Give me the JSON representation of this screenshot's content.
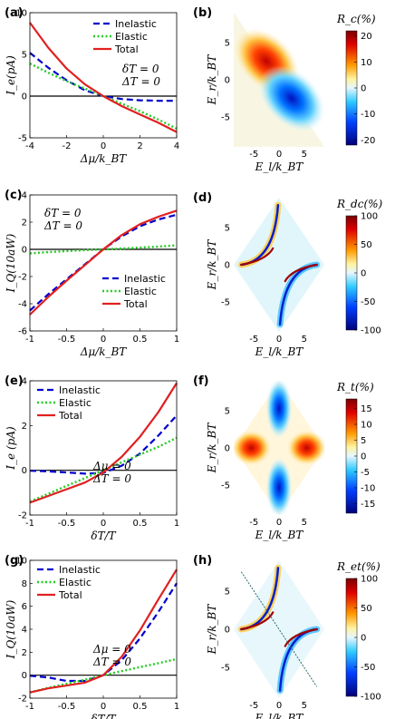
{
  "chart_data": [
    {
      "panel": "(a)",
      "type": "line",
      "xlabel": "Δμ/k_BT",
      "ylabel": "I_e(pA)",
      "xlim": [
        -4,
        4
      ],
      "ylim": [
        -5,
        10
      ],
      "xticks": [
        -4,
        -2,
        0,
        2,
        4
      ],
      "yticks": [
        -5,
        0,
        5,
        10
      ],
      "annotation": [
        "δT = 0",
        "ΔT = 0"
      ],
      "legend_position": "top-right",
      "x": [
        -4,
        -3,
        -2,
        -1,
        0,
        1,
        2,
        3,
        4
      ],
      "series": [
        {
          "name": "Inelastic",
          "values": [
            5.2,
            3.4,
            1.9,
            0.7,
            0,
            -0.35,
            -0.5,
            -0.55,
            -0.55
          ]
        },
        {
          "name": "Elastic",
          "values": [
            3.9,
            2.8,
            1.8,
            0.9,
            0,
            -0.9,
            -1.8,
            -2.8,
            -3.9
          ]
        },
        {
          "name": "Total",
          "values": [
            8.8,
            5.8,
            3.3,
            1.4,
            0,
            -1.2,
            -2.2,
            -3.2,
            -4.3
          ]
        }
      ]
    },
    {
      "panel": "(b)",
      "type": "heatmap",
      "xlabel": "E_l/k_BT",
      "ylabel": "E_r/k_BT",
      "cbar_title": "R_c(%)",
      "xticks": [
        -5,
        0,
        5
      ],
      "yticks": [
        -5,
        0,
        5
      ],
      "cbar_ticks": [
        20,
        10,
        0,
        -10,
        -20
      ],
      "cbar_range": [
        -22,
        22
      ]
    },
    {
      "panel": "(c)",
      "type": "line",
      "xlabel": "Δμ/k_BT",
      "ylabel": "I_Q(10aW)",
      "xlim": [
        -1,
        1
      ],
      "ylim": [
        -6,
        4
      ],
      "xticks": [
        -1,
        -0.5,
        0,
        0.5,
        1
      ],
      "yticks": [
        -6,
        -4,
        -2,
        0,
        2,
        4
      ],
      "annotation": [
        "δT = 0",
        "ΔT = 0"
      ],
      "legend_position": "bottom-right",
      "x": [
        -1,
        -0.75,
        -0.5,
        -0.25,
        0,
        0.25,
        0.5,
        0.75,
        1
      ],
      "series": [
        {
          "name": "Inelastic",
          "values": [
            -4.5,
            -3.3,
            -2.2,
            -1.1,
            0,
            0.95,
            1.7,
            2.2,
            2.55
          ]
        },
        {
          "name": "Elastic",
          "values": [
            -0.3,
            -0.2,
            -0.13,
            -0.06,
            0,
            0.06,
            0.13,
            0.2,
            0.3
          ]
        },
        {
          "name": "Total",
          "values": [
            -4.8,
            -3.5,
            -2.3,
            -1.15,
            0,
            1.05,
            1.85,
            2.4,
            2.85
          ]
        }
      ]
    },
    {
      "panel": "(d)",
      "type": "heatmap",
      "xlabel": "E_l/k_BT",
      "ylabel": "E_r/k_BT",
      "cbar_title": "R_dc(%)",
      "xticks": [
        -5,
        0,
        5
      ],
      "yticks": [
        -5,
        0,
        5
      ],
      "cbar_ticks": [
        100,
        50,
        0,
        -50,
        -100
      ],
      "cbar_range": [
        -100,
        100
      ]
    },
    {
      "panel": "(e)",
      "type": "line",
      "xlabel": "δT/T",
      "ylabel": "I_e (pA)",
      "xlim": [
        -1,
        1
      ],
      "ylim": [
        -2,
        4
      ],
      "xticks": [
        -1,
        -0.5,
        0,
        0.5,
        1
      ],
      "yticks": [
        -2,
        0,
        2,
        4
      ],
      "annotation": [
        "Δμ = 0",
        "ΔT = 0"
      ],
      "legend_position": "top-left",
      "x": [
        -1,
        -0.75,
        -0.5,
        -0.25,
        0,
        0.25,
        0.5,
        0.75,
        1
      ],
      "series": [
        {
          "name": "Inelastic",
          "values": [
            -0.02,
            -0.05,
            -0.1,
            -0.15,
            -0.12,
            0.2,
            0.75,
            1.55,
            2.45
          ]
        },
        {
          "name": "Elastic",
          "values": [
            -1.4,
            -1.05,
            -0.7,
            -0.35,
            0,
            0.35,
            0.7,
            1.05,
            1.45
          ]
        },
        {
          "name": "Total",
          "values": [
            -1.45,
            -1.15,
            -0.85,
            -0.55,
            -0.1,
            0.6,
            1.5,
            2.6,
            3.9
          ]
        }
      ]
    },
    {
      "panel": "(f)",
      "type": "heatmap",
      "xlabel": "E_l/k_BT",
      "ylabel": "E_r/k_BT",
      "cbar_title": "R_t(%)",
      "xticks": [
        -5,
        0,
        5
      ],
      "yticks": [
        -5,
        0,
        5
      ],
      "cbar_ticks": [
        15,
        10,
        5,
        0,
        -5,
        -10,
        -15
      ],
      "cbar_range": [
        -18,
        18
      ]
    },
    {
      "panel": "(g)",
      "type": "line",
      "xlabel": "δT/T",
      "ylabel": "I_Q(10aW)",
      "xlim": [
        -1,
        1
      ],
      "ylim": [
        -2,
        10
      ],
      "xticks": [
        -1,
        -0.5,
        0,
        0.5,
        1
      ],
      "yticks": [
        -2,
        0,
        2,
        4,
        6,
        8,
        10
      ],
      "annotation": [
        "Δμ = 0",
        "ΔT = 0"
      ],
      "legend_position": "top-left",
      "x": [
        -1,
        -0.75,
        -0.5,
        -0.25,
        0,
        0.25,
        0.5,
        0.75,
        1
      ],
      "series": [
        {
          "name": "Inelastic",
          "values": [
            -0.05,
            -0.2,
            -0.5,
            -0.5,
            0,
            1.3,
            3.2,
            5.5,
            8.0
          ]
        },
        {
          "name": "Elastic",
          "values": [
            -1.5,
            -1.1,
            -0.75,
            -0.4,
            0,
            0.35,
            0.7,
            1.05,
            1.4
          ]
        },
        {
          "name": "Total",
          "values": [
            -1.5,
            -1.15,
            -0.9,
            -0.65,
            0,
            1.6,
            3.9,
            6.6,
            9.2
          ]
        }
      ]
    },
    {
      "panel": "(h)",
      "type": "heatmap",
      "xlabel": "E_l/k_BT",
      "ylabel": "E_r/k_BT",
      "cbar_title": "R_et(%)",
      "xticks": [
        -5,
        0,
        5
      ],
      "yticks": [
        -5,
        0,
        5
      ],
      "cbar_ticks": [
        100,
        50,
        0,
        -50,
        -100
      ],
      "cbar_range": [
        -100,
        100
      ]
    }
  ],
  "colors": {
    "inelastic": "#0000cc",
    "elastic": "#22cc22",
    "total": "#e02020"
  }
}
